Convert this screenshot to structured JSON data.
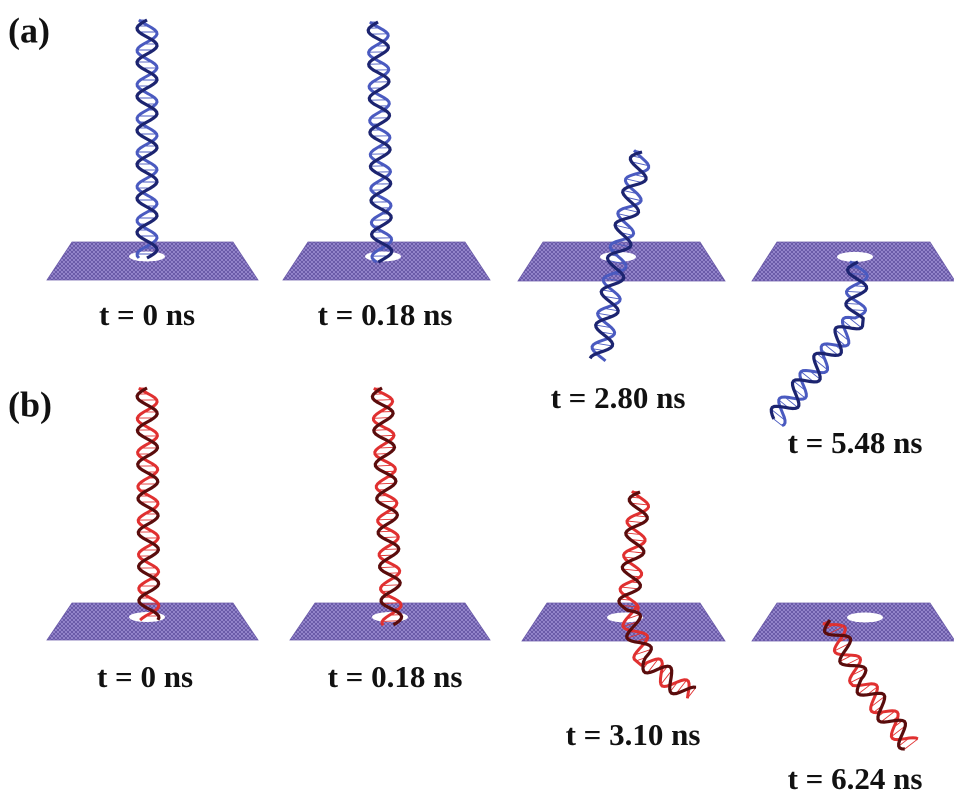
{
  "panels": [
    {
      "label": "(a)",
      "frames": [
        {
          "time": "t = 0 ns"
        },
        {
          "time": "t = 0.18 ns"
        },
        {
          "time": "t = 2.80 ns"
        },
        {
          "time": "t = 5.48 ns"
        }
      ]
    },
    {
      "label": "(b)",
      "frames": [
        {
          "time": "t = 0 ns"
        },
        {
          "time": "t = 0.18 ns"
        },
        {
          "time": "t = 3.10 ns"
        },
        {
          "time": "t = 6.24 ns"
        }
      ]
    }
  ]
}
